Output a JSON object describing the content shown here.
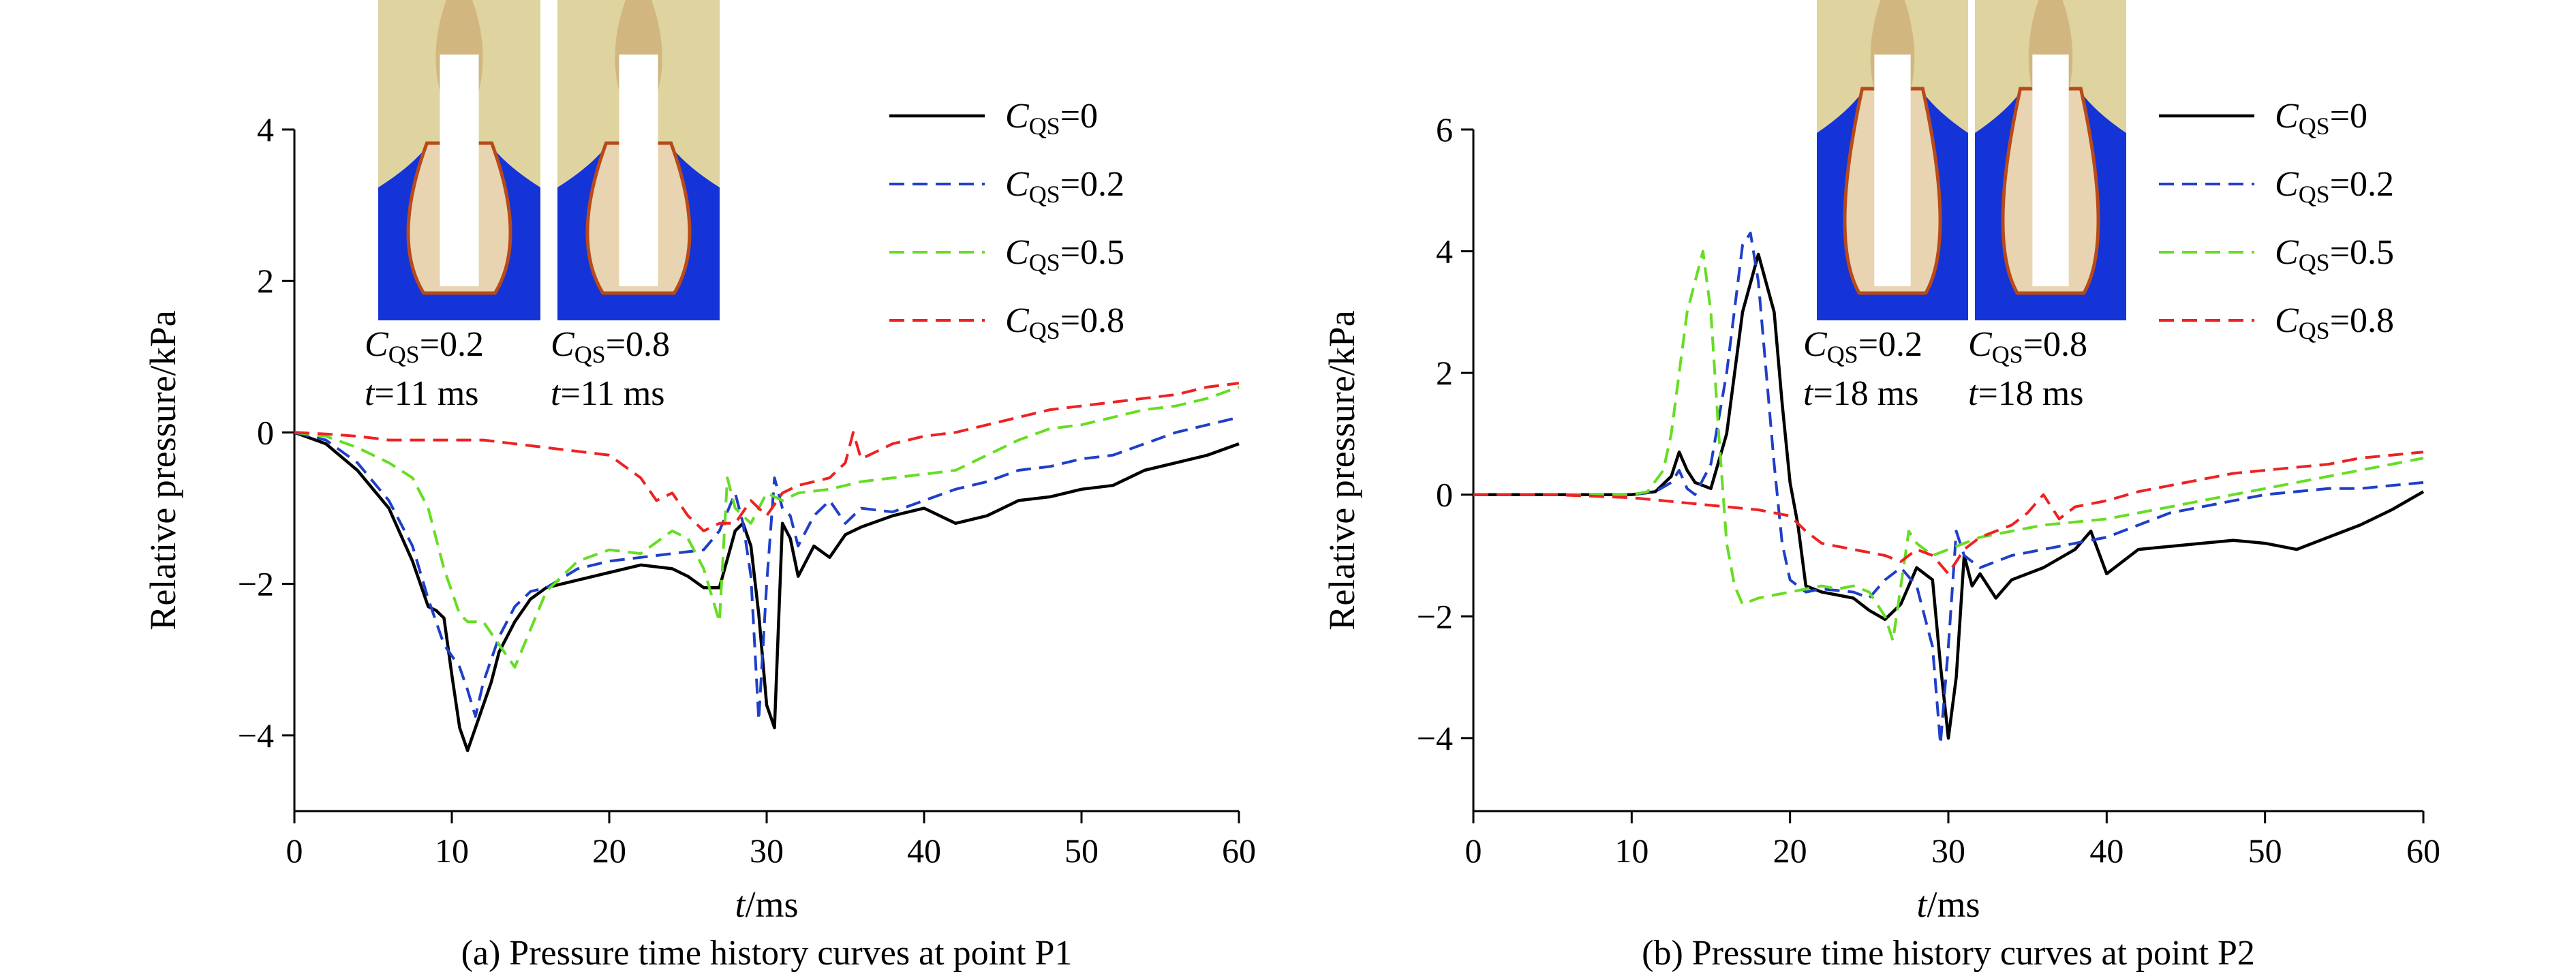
{
  "chart_data": [
    {
      "type": "line",
      "caption": "(a) Pressure time history curves at point P1",
      "xlabel_italic": "t",
      "xlabel_rest": "/ms",
      "ylabel": "Relative pressure/kPa",
      "xlim": [
        0,
        60
      ],
      "ylim": [
        -5,
        4
      ],
      "xticks": [
        0,
        10,
        20,
        30,
        40,
        50,
        60
      ],
      "yticks": [
        -4,
        -2,
        0,
        2,
        4
      ],
      "grid": false,
      "legend_position": "top-right",
      "series": [
        {
          "name": "C_QS=0",
          "color": "#000000",
          "dash": "solid",
          "x": [
            0,
            2,
            4,
            6,
            7.5,
            8.5,
            9,
            9.5,
            10,
            10.5,
            11,
            11.5,
            12,
            12.5,
            13,
            14,
            15,
            16,
            18,
            20,
            22,
            24,
            25,
            26,
            27,
            28,
            28.5,
            29,
            29.5,
            30,
            30.5,
            31,
            31.5,
            32,
            33,
            34,
            35,
            36,
            38,
            40,
            42,
            44,
            46,
            48,
            50,
            52,
            54,
            56,
            58,
            60
          ],
          "y": [
            0,
            -0.15,
            -0.5,
            -1.0,
            -1.7,
            -2.3,
            -2.35,
            -2.45,
            -3.2,
            -3.9,
            -4.2,
            -3.9,
            -3.6,
            -3.3,
            -2.9,
            -2.5,
            -2.2,
            -2.05,
            -1.95,
            -1.85,
            -1.75,
            -1.8,
            -1.9,
            -2.05,
            -2.05,
            -1.3,
            -1.2,
            -1.5,
            -2.4,
            -3.6,
            -3.9,
            -1.2,
            -1.4,
            -1.9,
            -1.5,
            -1.65,
            -1.35,
            -1.25,
            -1.1,
            -1.0,
            -1.2,
            -1.1,
            -0.9,
            -0.85,
            -0.75,
            -0.7,
            -0.5,
            -0.4,
            -0.3,
            -0.15
          ]
        },
        {
          "name": "C_QS=0.2",
          "color": "#1f3fc8",
          "dash": "dashed",
          "x": [
            0,
            2,
            4,
            6,
            7.5,
            8.5,
            9.5,
            10.5,
            11,
            11.5,
            12,
            13,
            14,
            15,
            16,
            18,
            20,
            22,
            24,
            26,
            27,
            28,
            28.5,
            29,
            29.5,
            30,
            30.5,
            31,
            31.5,
            32,
            33,
            34,
            35,
            36,
            38,
            40,
            42,
            44,
            46,
            48,
            50,
            52,
            54,
            56,
            58,
            60
          ],
          "y": [
            0,
            -0.1,
            -0.4,
            -0.9,
            -1.5,
            -2.2,
            -2.8,
            -3.1,
            -3.4,
            -3.75,
            -3.3,
            -2.7,
            -2.3,
            -2.1,
            -2.05,
            -1.8,
            -1.7,
            -1.65,
            -1.6,
            -1.55,
            -1.3,
            -0.8,
            -1.2,
            -1.9,
            -3.8,
            -2.0,
            -0.6,
            -1.0,
            -1.1,
            -1.5,
            -1.1,
            -0.9,
            -1.2,
            -1.0,
            -1.05,
            -0.9,
            -0.75,
            -0.65,
            -0.5,
            -0.45,
            -0.35,
            -0.3,
            -0.15,
            0.0,
            0.1,
            0.2
          ]
        },
        {
          "name": "C_QS=0.5",
          "color": "#66dd22",
          "dash": "dashed",
          "x": [
            0,
            2,
            4,
            6,
            7.5,
            8.5,
            9.5,
            10.5,
            11,
            12,
            13,
            14,
            15,
            16,
            18,
            20,
            22,
            24,
            25,
            26,
            27,
            27.5,
            28,
            29,
            30,
            31,
            32,
            34,
            36,
            38,
            40,
            42,
            44,
            46,
            48,
            50,
            52,
            54,
            56,
            58,
            60
          ],
          "y": [
            0,
            -0.05,
            -0.2,
            -0.4,
            -0.6,
            -1.0,
            -1.8,
            -2.4,
            -2.5,
            -2.5,
            -2.8,
            -3.1,
            -2.6,
            -2.1,
            -1.7,
            -1.55,
            -1.6,
            -1.3,
            -1.4,
            -1.8,
            -2.5,
            -0.6,
            -1.0,
            -1.2,
            -0.8,
            -0.9,
            -0.8,
            -0.75,
            -0.65,
            -0.6,
            -0.55,
            -0.5,
            -0.3,
            -0.1,
            0.05,
            0.1,
            0.2,
            0.3,
            0.35,
            0.45,
            0.6
          ]
        },
        {
          "name": "C_QS=0.8",
          "color": "#ee2222",
          "dash": "dashed",
          "x": [
            0,
            2,
            4,
            6,
            8,
            10,
            12,
            14,
            16,
            18,
            20,
            22,
            23,
            24,
            25,
            26,
            27,
            28,
            29,
            30,
            31,
            32,
            33,
            34,
            35,
            35.5,
            36,
            38,
            40,
            42,
            44,
            46,
            48,
            50,
            52,
            54,
            56,
            58,
            60
          ],
          "y": [
            0,
            -0.02,
            -0.05,
            -0.1,
            -0.1,
            -0.1,
            -0.1,
            -0.15,
            -0.2,
            -0.25,
            -0.3,
            -0.6,
            -0.9,
            -0.8,
            -1.1,
            -1.3,
            -1.2,
            -1.2,
            -0.9,
            -1.1,
            -0.8,
            -0.7,
            -0.65,
            -0.6,
            -0.4,
            0.0,
            -0.35,
            -0.15,
            -0.05,
            0.0,
            0.1,
            0.2,
            0.3,
            0.35,
            0.4,
            0.45,
            0.5,
            0.6,
            0.65
          ]
        }
      ],
      "insets": [
        {
          "label_c": "C",
          "label_sub": "QS",
          "label_value": "=0.2",
          "label_t_italic": "t",
          "label_t_rest": "=11 ms",
          "water_level": 0.5
        },
        {
          "label_c": "C",
          "label_sub": "QS",
          "label_value": "=0.8",
          "label_t_italic": "t",
          "label_t_rest": "=11 ms",
          "water_level": 0.5
        }
      ]
    },
    {
      "type": "line",
      "caption": "(b) Pressure time history curves at point P2",
      "xlabel_italic": "t",
      "xlabel_rest": "/ms",
      "ylabel": "Relative pressure/kPa",
      "xlim": [
        0,
        60
      ],
      "ylim": [
        -5.2,
        6
      ],
      "xticks": [
        0,
        10,
        20,
        30,
        40,
        50,
        60
      ],
      "yticks": [
        -4,
        -2,
        0,
        2,
        4,
        6
      ],
      "grid": false,
      "legend_position": "top-right",
      "series": [
        {
          "name": "C_QS=0",
          "color": "#000000",
          "dash": "solid",
          "x": [
            0,
            5,
            10,
            11.5,
            12.5,
            13,
            13.5,
            14,
            15,
            16,
            17,
            18,
            19,
            19.5,
            20,
            20.5,
            21,
            22,
            23,
            24,
            25,
            26,
            27,
            28,
            29,
            29.5,
            30,
            30.5,
            31,
            31.5,
            32,
            33,
            34,
            36,
            38,
            39,
            40,
            42,
            44,
            46,
            48,
            50,
            52,
            54,
            56,
            58,
            60
          ],
          "y": [
            0,
            0,
            0,
            0.05,
            0.3,
            0.7,
            0.4,
            0.2,
            0.1,
            1.0,
            3.0,
            3.95,
            3.0,
            1.5,
            0.2,
            -0.5,
            -1.5,
            -1.6,
            -1.65,
            -1.7,
            -1.9,
            -2.05,
            -1.8,
            -1.2,
            -1.4,
            -2.8,
            -4.0,
            -3.0,
            -1.0,
            -1.5,
            -1.3,
            -1.7,
            -1.4,
            -1.2,
            -0.9,
            -0.6,
            -1.3,
            -0.9,
            -0.85,
            -0.8,
            -0.75,
            -0.8,
            -0.9,
            -0.7,
            -0.5,
            -0.25,
            0.05
          ]
        },
        {
          "name": "C_QS=0.2",
          "color": "#1f3fc8",
          "dash": "dashed",
          "x": [
            0,
            5,
            10,
            11.5,
            12.5,
            13,
            13.5,
            14,
            15,
            16,
            17,
            17.5,
            18,
            18.5,
            19,
            19.5,
            20,
            21,
            22,
            24,
            25,
            26,
            27,
            28,
            29,
            29.5,
            30,
            30.5,
            31,
            31.5,
            32,
            34,
            36,
            38,
            40,
            42,
            44,
            46,
            48,
            50,
            52,
            54,
            56,
            58,
            60
          ],
          "y": [
            0,
            0,
            0,
            0.05,
            0.2,
            0.4,
            0.1,
            0.0,
            0.5,
            2.0,
            4.1,
            4.3,
            3.5,
            2.0,
            0.5,
            -0.8,
            -1.4,
            -1.6,
            -1.55,
            -1.6,
            -1.7,
            -1.4,
            -1.2,
            -1.5,
            -2.5,
            -4.1,
            -2.5,
            -0.6,
            -1.0,
            -1.1,
            -1.2,
            -1.0,
            -0.9,
            -0.8,
            -0.7,
            -0.5,
            -0.3,
            -0.2,
            -0.1,
            0.0,
            0.05,
            0.1,
            0.1,
            0.15,
            0.2
          ]
        },
        {
          "name": "C_QS=0.5",
          "color": "#66dd22",
          "dash": "dashed",
          "x": [
            0,
            5,
            10,
            11,
            12,
            12.5,
            13,
            13.5,
            14,
            14.5,
            15,
            15.5,
            16,
            16.5,
            17,
            18,
            19,
            20,
            21,
            22,
            23,
            24,
            25,
            26,
            26.5,
            27,
            27.5,
            28,
            29,
            30,
            31,
            32,
            34,
            36,
            38,
            40,
            42,
            44,
            46,
            48,
            50,
            52,
            54,
            56,
            58,
            60
          ],
          "y": [
            0,
            0,
            0,
            0.05,
            0.4,
            1.0,
            2.0,
            3.0,
            3.5,
            4.0,
            3.0,
            1.0,
            -0.8,
            -1.5,
            -1.8,
            -1.7,
            -1.65,
            -1.6,
            -1.55,
            -1.5,
            -1.55,
            -1.5,
            -1.6,
            -2.0,
            -2.4,
            -1.5,
            -0.6,
            -0.8,
            -1.0,
            -0.9,
            -0.8,
            -0.7,
            -0.6,
            -0.5,
            -0.45,
            -0.4,
            -0.3,
            -0.2,
            -0.1,
            0.0,
            0.1,
            0.2,
            0.3,
            0.4,
            0.5,
            0.6
          ]
        },
        {
          "name": "C_QS=0.8",
          "color": "#ee2222",
          "dash": "dashed",
          "x": [
            0,
            5,
            10,
            12,
            14,
            16,
            18,
            20,
            21,
            22,
            24,
            26,
            27,
            28,
            29,
            30,
            31,
            32,
            33,
            34,
            35,
            36,
            37,
            38,
            40,
            42,
            44,
            46,
            48,
            50,
            52,
            54,
            56,
            58,
            60
          ],
          "y": [
            0,
            0,
            -0.05,
            -0.1,
            -0.15,
            -0.2,
            -0.25,
            -0.35,
            -0.6,
            -0.8,
            -0.9,
            -1.0,
            -1.1,
            -0.9,
            -1.0,
            -1.3,
            -0.9,
            -0.7,
            -0.6,
            -0.5,
            -0.3,
            0.0,
            -0.4,
            -0.2,
            -0.1,
            0.05,
            0.15,
            0.25,
            0.35,
            0.4,
            0.45,
            0.5,
            0.6,
            0.65,
            0.7
          ]
        }
      ],
      "insets": [
        {
          "label_c": "C",
          "label_sub": "QS",
          "label_value": "=0.2",
          "label_t_italic": "t",
          "label_t_rest": "=18 ms",
          "water_level": 0.33
        },
        {
          "label_c": "C",
          "label_sub": "QS",
          "label_value": "=0.8",
          "label_t_italic": "t",
          "label_t_rest": "=18 ms",
          "water_level": 0.33
        }
      ]
    }
  ]
}
